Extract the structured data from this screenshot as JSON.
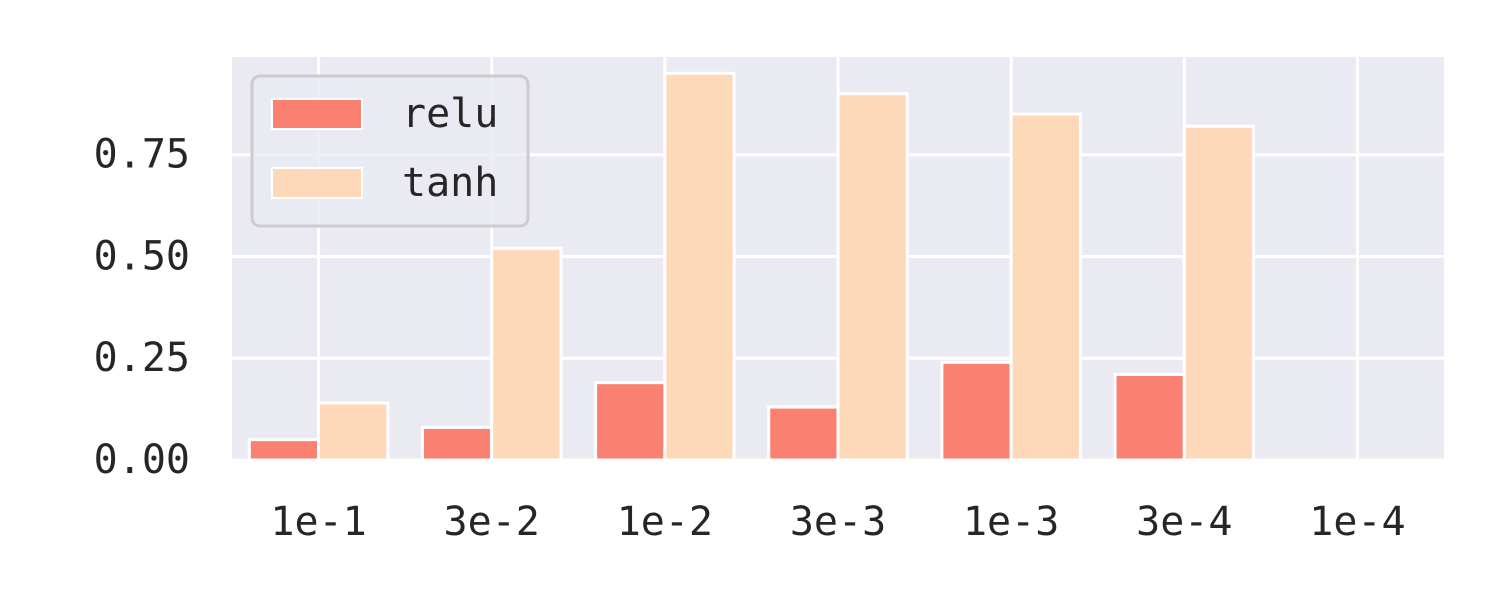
{
  "chart_data": {
    "type": "bar",
    "title": "",
    "xlabel": "",
    "ylabel": "",
    "categories": [
      "1e-1",
      "3e-2",
      "1e-2",
      "3e-3",
      "1e-3",
      "3e-4",
      "1e-4"
    ],
    "series": [
      {
        "name": "relu",
        "color": "#fa8072",
        "values": [
          0.05,
          0.08,
          0.19,
          0.13,
          0.24,
          0.21,
          0.0
        ]
      },
      {
        "name": "tanh",
        "color": "#fdd9b9",
        "values": [
          0.14,
          0.52,
          0.95,
          0.9,
          0.85,
          0.82,
          0.0
        ]
      }
    ],
    "yticks": [
      "0.00",
      "0.25",
      "0.50",
      "0.75"
    ],
    "ylim": [
      0,
      0.99
    ],
    "grid": true,
    "legend": "top-left",
    "background": "#eaeaf2"
  }
}
